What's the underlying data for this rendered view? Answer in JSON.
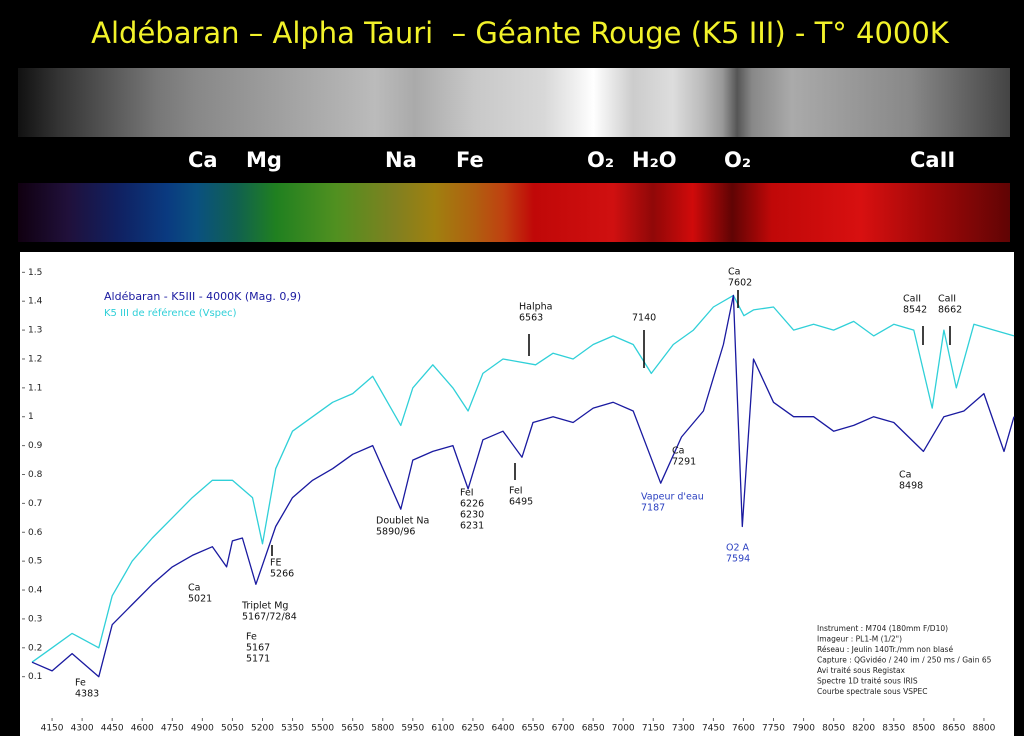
{
  "slide": {
    "title": "Aldébaran – Alpha Tauri  – Géante Rouge (K5 III) - T° 4000K",
    "elements": [
      "Ca",
      "Mg",
      "Na",
      "Fe",
      "O₂",
      "H₂O",
      "O₂",
      "CaII"
    ]
  },
  "chart_data": {
    "type": "line",
    "xlim": [
      4000,
      8950
    ],
    "ylim": [
      -0.05,
      1.56
    ],
    "xticks": [
      4150,
      4300,
      4450,
      4600,
      4750,
      4900,
      5050,
      5200,
      5350,
      5500,
      5650,
      5800,
      5950,
      6100,
      6250,
      6400,
      6550,
      6700,
      6850,
      7000,
      7150,
      7300,
      7450,
      7600,
      7750,
      7900,
      8050,
      8200,
      8350,
      8500,
      8650,
      8800
    ],
    "yticks": [
      0.1,
      0.2,
      0.3,
      0.4,
      0.5,
      0.6,
      0.7,
      0.8,
      0.9,
      1,
      1.1,
      1.2,
      1.3,
      1.4,
      1.5
    ],
    "series": [
      {
        "name": "Aldébaran - K5III - 4000K (Mag. 0,9)",
        "color": "#1a1aa0",
        "x": [
          4050,
          4150,
          4250,
          4383,
          4450,
          4550,
          4650,
          4750,
          4850,
          4950,
          5021,
          5050,
          5100,
          5167,
          5266,
          5350,
          5450,
          5550,
          5650,
          5750,
          5890,
          5950,
          6050,
          6150,
          6226,
          6300,
          6400,
          6495,
          6550,
          6650,
          6750,
          6850,
          6950,
          7050,
          7187,
          7291,
          7400,
          7500,
          7550,
          7594,
          7650,
          7750,
          7850,
          7950,
          8050,
          8150,
          8250,
          8350,
          8498,
          8600,
          8700,
          8800,
          8900,
          8950
        ],
        "values": [
          0.15,
          0.12,
          0.18,
          0.1,
          0.28,
          0.35,
          0.42,
          0.48,
          0.52,
          0.55,
          0.48,
          0.57,
          0.58,
          0.42,
          0.62,
          0.72,
          0.78,
          0.82,
          0.87,
          0.9,
          0.68,
          0.85,
          0.88,
          0.9,
          0.75,
          0.92,
          0.95,
          0.86,
          0.98,
          1.0,
          0.98,
          1.03,
          1.05,
          1.02,
          0.77,
          0.93,
          1.02,
          1.25,
          1.42,
          0.62,
          1.2,
          1.05,
          1.0,
          1.0,
          0.95,
          0.97,
          1.0,
          0.98,
          0.88,
          1.0,
          1.02,
          1.08,
          0.88,
          1.0
        ]
      },
      {
        "name": "K5 III de référence (Vspec)",
        "color": "#30d0d8",
        "x": [
          4050,
          4150,
          4250,
          4383,
          4450,
          4550,
          4650,
          4750,
          4850,
          4950,
          5050,
          5150,
          5200,
          5266,
          5350,
          5450,
          5550,
          5650,
          5750,
          5890,
          5950,
          6050,
          6150,
          6226,
          6300,
          6400,
          6563,
          6650,
          6750,
          6850,
          6950,
          7050,
          7140,
          7250,
          7350,
          7450,
          7550,
          7602,
          7650,
          7750,
          7850,
          7950,
          8050,
          8150,
          8250,
          8350,
          8450,
          8542,
          8600,
          8662,
          8750,
          8850,
          8950
        ],
        "values": [
          0.15,
          0.2,
          0.25,
          0.2,
          0.38,
          0.5,
          0.58,
          0.65,
          0.72,
          0.78,
          0.78,
          0.72,
          0.56,
          0.82,
          0.95,
          1.0,
          1.05,
          1.08,
          1.14,
          0.97,
          1.1,
          1.18,
          1.1,
          1.02,
          1.15,
          1.2,
          1.18,
          1.22,
          1.2,
          1.25,
          1.28,
          1.25,
          1.15,
          1.25,
          1.3,
          1.38,
          1.42,
          1.35,
          1.37,
          1.38,
          1.3,
          1.32,
          1.3,
          1.33,
          1.28,
          1.32,
          1.3,
          1.03,
          1.3,
          1.1,
          1.32,
          1.3,
          1.28
        ]
      }
    ],
    "annotations": [
      {
        "lines": [
          "Fe",
          "4383"
        ],
        "color": "#111"
      },
      {
        "lines": [
          "Ca",
          "5021"
        ],
        "color": "#111"
      },
      {
        "lines": [
          "Triplet  Mg",
          "5167/72/84"
        ],
        "color": "#111"
      },
      {
        "lines": [
          "Fe",
          "5167",
          "5171"
        ],
        "color": "#111"
      },
      {
        "lines": [
          "FE",
          "5266"
        ],
        "color": "#111"
      },
      {
        "lines": [
          "Doublet Na",
          "5890/96"
        ],
        "color": "#111"
      },
      {
        "lines": [
          "FeI",
          "6226",
          "6230",
          "6231"
        ],
        "color": "#111"
      },
      {
        "lines": [
          "FeI",
          "6495"
        ],
        "color": "#111"
      },
      {
        "lines": [
          "Halpha",
          "6563"
        ],
        "color": "#111"
      },
      {
        "lines": [
          "7140"
        ],
        "color": "#111"
      },
      {
        "lines": [
          "Vapeur d'eau",
          "7187"
        ],
        "color": "#2a3fc0"
      },
      {
        "lines": [
          "Ca",
          "7291"
        ],
        "color": "#111"
      },
      {
        "lines": [
          "Ca",
          "7602"
        ],
        "color": "#111"
      },
      {
        "lines": [
          "O2 A",
          "7594"
        ],
        "color": "#2a3fc0"
      },
      {
        "lines": [
          "CaII",
          "8542"
        ],
        "color": "#111"
      },
      {
        "lines": [
          "CaII",
          "8662"
        ],
        "color": "#111"
      },
      {
        "lines": [
          "Ca",
          "8498"
        ],
        "color": "#111"
      }
    ],
    "notes": [
      "Instrument : M704 (180mm F/D10)",
      "Imageur : PL1-M (1/2\")",
      "Réseau : Jeulin 140Tr./mm non blasé",
      "Capture : QGvidéo / 240 im / 250 ms / Gain 65",
      "Avi traité sous Registax",
      "Spectre 1D traité sous IRIS",
      "Courbe spectrale sous VSPEC"
    ]
  }
}
